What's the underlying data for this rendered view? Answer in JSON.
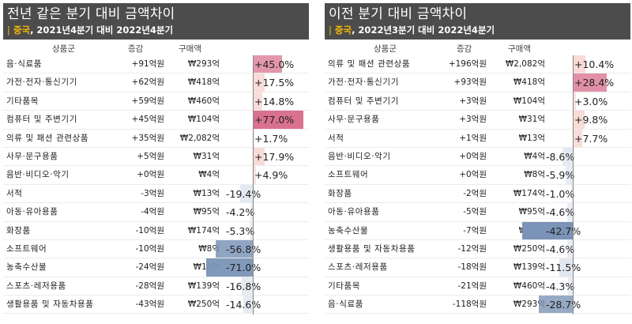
{
  "colors": {
    "header_bg": "#4c4c4c",
    "accent": "#f5c400",
    "pos_strong": "#d9718f",
    "pos_light": "#f3b7b0",
    "neg_strong": "#7a93b6",
    "neg_light": "#c9d4e3"
  },
  "panels": [
    {
      "id": "left",
      "title": "전년 같은 분기 대비 금액차이",
      "subtitle_bar": "|",
      "subtitle_country": "중국",
      "subtitle_rest": ", 2021년4분기 대비 2022년4분기",
      "columns": {
        "category": "상품군",
        "change": "증감",
        "amount": "구매액"
      },
      "rows": [
        {
          "name": "음·식료품",
          "change": "+91억원",
          "amount": "₩293억",
          "pct": "+45.0%",
          "level": 0.45
        },
        {
          "name": "가전·전자·통신기기",
          "change": "+62억원",
          "amount": "₩418억",
          "pct": "+17.5%",
          "level": 0.175
        },
        {
          "name": "기타품목",
          "change": "+59억원",
          "amount": "₩460억",
          "pct": "+14.8%",
          "level": 0.148
        },
        {
          "name": "컴퓨터 및 주변기기",
          "change": "+45억원",
          "amount": "₩104억",
          "pct": "+77.0%",
          "level": 0.77
        },
        {
          "name": "의류 및 패션 관련상품",
          "change": "+35억원",
          "amount": "₩2,082억",
          "pct": "+1.7%",
          "level": 0.017
        },
        {
          "name": "사무·문구용품",
          "change": "+5억원",
          "amount": "₩31억",
          "pct": "+17.9%",
          "level": 0.179
        },
        {
          "name": "음반·비디오·악기",
          "change": "+0억원",
          "amount": "₩4억",
          "pct": "+4.9%",
          "level": 0.049
        },
        {
          "name": "서적",
          "change": "-3억원",
          "amount": "₩13억",
          "pct": "-19.4%",
          "level": -0.194
        },
        {
          "name": "아동·유아용품",
          "change": "-4억원",
          "amount": "₩95억",
          "pct": "-4.2%",
          "level": -0.042
        },
        {
          "name": "화장품",
          "change": "-10억원",
          "amount": "₩174억",
          "pct": "-5.3%",
          "level": -0.053
        },
        {
          "name": "소프트웨어",
          "change": "-10억원",
          "amount": "₩8억",
          "pct": "-56.8%",
          "level": -0.568
        },
        {
          "name": "농축수산물",
          "change": "-24억원",
          "amount": "₩10억",
          "pct": "-71.0%",
          "level": -0.71
        },
        {
          "name": "스포츠·레저용품",
          "change": "-28억원",
          "amount": "₩139억",
          "pct": "-16.8%",
          "level": -0.168
        },
        {
          "name": "생활용품 및 자동차용품",
          "change": "-43억원",
          "amount": "₩250억",
          "pct": "-14.6%",
          "level": -0.146
        }
      ]
    },
    {
      "id": "right",
      "title": "이전 분기 대비 금액차이",
      "subtitle_bar": "|",
      "subtitle_country": "중국",
      "subtitle_rest": ", 2022년3분기 대비 2022년4분기",
      "columns": {
        "category": "상품군",
        "change": "증감",
        "amount": "구매액"
      },
      "rows": [
        {
          "name": "의류 및 패션 관련상품",
          "change": "+196억원",
          "amount": "₩2,082억",
          "pct": "+10.4%",
          "level": 0.104
        },
        {
          "name": "가전·전자·통신기기",
          "change": "+93억원",
          "amount": "₩418억",
          "pct": "+28.4%",
          "level": 0.284
        },
        {
          "name": "컴퓨터 및 주변기기",
          "change": "+3억원",
          "amount": "₩104억",
          "pct": "+3.0%",
          "level": 0.03
        },
        {
          "name": "사무·문구용품",
          "change": "+3억원",
          "amount": "₩31억",
          "pct": "+9.8%",
          "level": 0.098
        },
        {
          "name": "서적",
          "change": "+1억원",
          "amount": "₩13억",
          "pct": "+7.7%",
          "level": 0.077
        },
        {
          "name": "음반·비디오·악기",
          "change": "+0억원",
          "amount": "₩4억",
          "pct": "-8.6%",
          "level": -0.086
        },
        {
          "name": "소프트웨어",
          "change": "+0억원",
          "amount": "₩8억",
          "pct": "-5.9%",
          "level": -0.059
        },
        {
          "name": "화장품",
          "change": "-2억원",
          "amount": "₩174억",
          "pct": "-1.0%",
          "level": -0.01
        },
        {
          "name": "아동·유아용품",
          "change": "-5억원",
          "amount": "₩95억",
          "pct": "-4.6%",
          "level": -0.046
        },
        {
          "name": "농축수산물",
          "change": "-7억원",
          "amount": "₩10억",
          "pct": "-42.7%",
          "level": -0.427
        },
        {
          "name": "생활용품 및 자동차용품",
          "change": "-12억원",
          "amount": "₩250억",
          "pct": "-4.6%",
          "level": -0.046
        },
        {
          "name": "스포츠·레저용품",
          "change": "-18억원",
          "amount": "₩139억",
          "pct": "-11.5%",
          "level": -0.115
        },
        {
          "name": "기타품목",
          "change": "-21억원",
          "amount": "₩460억",
          "pct": "-4.3%",
          "level": -0.043
        },
        {
          "name": "음·식료품",
          "change": "-118억원",
          "amount": "₩293억",
          "pct": "-28.7%",
          "level": -0.287
        }
      ]
    }
  ]
}
